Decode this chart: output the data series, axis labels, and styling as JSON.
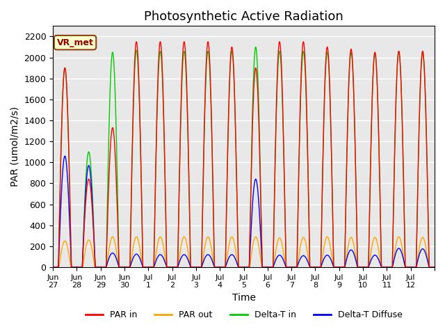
{
  "title": "Photosynthetic Active Radiation",
  "xlabel": "Time",
  "ylabel": "PAR (umol/m2/s)",
  "annotation": "VR_met",
  "ylim": [
    0,
    2300
  ],
  "background_color": "#e8e8e8",
  "legend": [
    "PAR in",
    "PAR out",
    "Delta-T in",
    "Delta-T Diffuse"
  ],
  "legend_colors": [
    "#ff0000",
    "#ffa500",
    "#00cc00",
    "#0000ff"
  ],
  "xtick_labels": [
    "Jun\n27",
    "Jun\n28",
    "Jun\n29",
    "Jun\n30",
    "Jul\n1",
    "Jul\n2",
    "Jul\n3",
    "Jul\n4",
    "Jul\n5",
    "Jul\n6",
    "Jul\n7",
    "Jul\n8",
    "Jul\n9",
    "Jul\n10",
    "Jul\n11",
    "Jul\n12"
  ],
  "title_fontsize": 13,
  "axis_label_fontsize": 10,
  "par_in_peaks": [
    1900,
    1050,
    1330,
    2150,
    2150,
    2150,
    2150,
    2100,
    1900,
    2150,
    2150,
    2100,
    2080,
    2050,
    2060,
    2060
  ],
  "dtin_peaks": [
    1900,
    1100,
    2050,
    2070,
    2060,
    2060,
    2060,
    2060,
    2100,
    2060,
    2060,
    2050,
    2050,
    2040,
    2060,
    2050
  ],
  "par_out_peaks": [
    250,
    260,
    290,
    290,
    290,
    290,
    290,
    290,
    290,
    280,
    285,
    290,
    285,
    285,
    290,
    285
  ],
  "dtd_peaks": [
    1060,
    970,
    135,
    125,
    120,
    120,
    120,
    120,
    840,
    115,
    110,
    115,
    165,
    115,
    180,
    175
  ],
  "par_in_cloudy": [
    false,
    true,
    true,
    false,
    false,
    false,
    false,
    false,
    true,
    false,
    false,
    false,
    false,
    false,
    false,
    false
  ]
}
